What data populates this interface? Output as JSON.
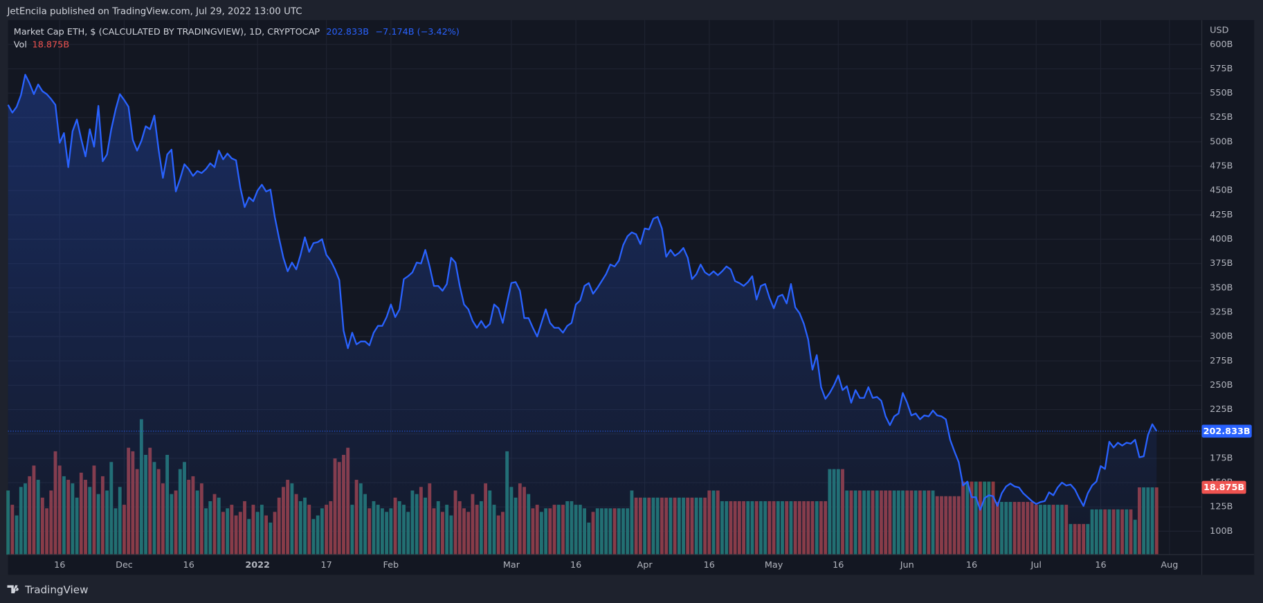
{
  "chart_data": {
    "type": "line",
    "publisher": "JetEncila published on TradingView.com, Jul 29, 2022 13:00 UTC",
    "title": "Market Cap ETH, $ (CALCULATED BY TRADINGVIEW), 1D, CRYPTOCAP",
    "axis_unit": "USD",
    "brand": "TradingView",
    "xlim": [
      0,
      277.5
    ],
    "xticks": [
      {
        "value": 12,
        "label": "16"
      },
      {
        "value": 27,
        "label": "Dec"
      },
      {
        "value": 42,
        "label": "16"
      },
      {
        "value": 58,
        "label": "2022"
      },
      {
        "value": 74,
        "label": "17"
      },
      {
        "value": 89,
        "label": "Feb"
      },
      {
        "value": 117,
        "label": "Mar"
      },
      {
        "value": 132,
        "label": "16"
      },
      {
        "value": 148,
        "label": "Apr"
      },
      {
        "value": 163,
        "label": "16"
      },
      {
        "value": 178,
        "label": "May"
      },
      {
        "value": 193,
        "label": "16"
      },
      {
        "value": 209,
        "label": "Jun"
      },
      {
        "value": 224,
        "label": "16"
      },
      {
        "value": 239,
        "label": "Jul"
      },
      {
        "value": 254,
        "label": "16"
      },
      {
        "value": 270,
        "label": "Aug"
      }
    ],
    "ylim": [
      76,
      625
    ],
    "yticks": [
      {
        "value": 100,
        "label": "100B"
      },
      {
        "value": 125,
        "label": "125B"
      },
      {
        "value": 150,
        "label": "150B"
      },
      {
        "value": 175,
        "label": "175B"
      },
      {
        "value": 200,
        "label": "200B"
      },
      {
        "value": 225,
        "label": "225B"
      },
      {
        "value": 250,
        "label": "250B"
      },
      {
        "value": 275,
        "label": "275B"
      },
      {
        "value": 300,
        "label": "300B"
      },
      {
        "value": 325,
        "label": "325B"
      },
      {
        "value": 350,
        "label": "350B"
      },
      {
        "value": 375,
        "label": "375B"
      },
      {
        "value": 400,
        "label": "400B"
      },
      {
        "value": 425,
        "label": "425B"
      },
      {
        "value": 450,
        "label": "450B"
      },
      {
        "value": 475,
        "label": "475B"
      },
      {
        "value": 500,
        "label": "500B"
      },
      {
        "value": 525,
        "label": "525B"
      },
      {
        "value": 550,
        "label": "550B"
      },
      {
        "value": 575,
        "label": "575B"
      },
      {
        "value": 600,
        "label": "600B"
      }
    ],
    "y2lim": [
      0,
      150
    ],
    "grid": true,
    "series": [
      {
        "color": "#2962ff",
        "last_label": "202.833B",
        "change_label": "−7.174B (−3.42%)",
        "values": [
          538,
          530,
          536,
          548,
          569,
          560,
          549,
          559,
          552,
          549,
          544,
          538,
          499,
          509,
          474,
          511,
          523,
          503,
          485,
          513,
          495,
          537,
          480,
          487,
          513,
          533,
          549,
          543,
          536,
          502,
          491,
          501,
          516,
          513,
          527,
          492,
          463,
          487,
          492,
          449,
          462,
          477,
          472,
          465,
          470,
          468,
          472,
          478,
          474,
          491,
          482,
          488,
          483,
          481,
          453,
          433,
          443,
          439,
          450,
          456,
          449,
          451,
          423,
          401,
          381,
          367,
          376,
          369,
          384,
          402,
          387,
          396,
          397,
          400,
          384,
          378,
          369,
          358,
          306,
          288,
          304,
          292,
          295,
          295,
          291,
          304,
          311,
          311,
          320,
          333,
          320,
          328,
          359,
          362,
          366,
          376,
          375,
          389,
          372,
          352,
          352,
          347,
          354,
          381,
          376,
          352,
          333,
          328,
          316,
          309,
          316,
          309,
          313,
          333,
          329,
          314,
          335,
          355,
          356,
          347,
          319,
          319,
          309,
          300,
          314,
          328,
          314,
          309,
          309,
          304,
          311,
          314,
          333,
          337,
          352,
          355,
          344,
          350,
          357,
          364,
          374,
          372,
          378,
          394,
          403,
          407,
          405,
          395,
          411,
          410,
          421,
          423,
          411,
          382,
          389,
          383,
          386,
          391,
          381,
          359,
          364,
          374,
          366,
          363,
          367,
          363,
          367,
          372,
          369,
          357,
          355,
          352,
          356,
          362,
          338,
          352,
          354,
          340,
          329,
          341,
          343,
          334,
          354,
          330,
          324,
          313,
          297,
          266,
          281,
          248,
          236,
          242,
          250,
          260,
          245,
          249,
          232,
          245,
          237,
          237,
          248,
          237,
          238,
          234,
          218,
          209,
          218,
          221,
          242,
          232,
          219,
          221,
          215,
          219,
          218,
          224,
          219,
          218,
          215,
          194,
          182,
          171,
          147,
          151,
          135,
          135,
          122,
          134,
          137,
          136,
          126,
          139,
          146,
          149,
          146,
          145,
          139,
          135,
          131,
          128,
          130,
          131,
          140,
          137,
          145,
          150,
          147,
          148,
          143,
          134,
          126,
          139,
          147,
          151,
          167,
          164,
          192,
          186,
          191,
          188,
          191,
          190,
          194,
          176,
          177,
          199,
          210,
          202.833
        ]
      },
      {
        "name": "Vol",
        "type": "bar",
        "axis": "y2",
        "up_color": "#22706b",
        "down_color": "#8c3a40",
        "last_label": "18.875B",
        "values": [
          18,
          14,
          11,
          19,
          20,
          22,
          25,
          21,
          16,
          13,
          18,
          29,
          25,
          22,
          21,
          20,
          16,
          23,
          21,
          19,
          25,
          17,
          22,
          18,
          26,
          13,
          19,
          14,
          30,
          29,
          24,
          38,
          28,
          30,
          26,
          24,
          20,
          28,
          17,
          18,
          24,
          26,
          21,
          22,
          18,
          20,
          13,
          15,
          17,
          16,
          12,
          13,
          14,
          11,
          12,
          15,
          10,
          14,
          12,
          14,
          11,
          9,
          12,
          16,
          19,
          21,
          20,
          17,
          15,
          16,
          14,
          10,
          11,
          13,
          14,
          15,
          27,
          26,
          28,
          30,
          14,
          21,
          20,
          17,
          13,
          15,
          14,
          13,
          12,
          13,
          16,
          15,
          14,
          12,
          18,
          17,
          19,
          16,
          20,
          13,
          15,
          12,
          14,
          11,
          18,
          15,
          13,
          12,
          17,
          14,
          15,
          20,
          18,
          14,
          11,
          12,
          29,
          19,
          16,
          20,
          19,
          17,
          13,
          14,
          12,
          13,
          13,
          14,
          14,
          14,
          15,
          15,
          14,
          14,
          13,
          9,
          12,
          13,
          13,
          13,
          13,
          13,
          13,
          13,
          13,
          18,
          16,
          16,
          16,
          16,
          16,
          16,
          16,
          16,
          16,
          16,
          16,
          16,
          16,
          16,
          16,
          16,
          16,
          18,
          18,
          18,
          15,
          15,
          15,
          15,
          15,
          15,
          15,
          15,
          15,
          15,
          15,
          15,
          15,
          15,
          15,
          15,
          15,
          15,
          15,
          15,
          15,
          15,
          15,
          15,
          15,
          24,
          24,
          24,
          24,
          18,
          18,
          18,
          18,
          18,
          18,
          18,
          18,
          18,
          18,
          18,
          18,
          18,
          18,
          18,
          18,
          18,
          18,
          18,
          18,
          18,
          16.4,
          16.4,
          16.4,
          16.4,
          16.4,
          16.4,
          20.5,
          20.5,
          20.5,
          20.5,
          20.5,
          20.5,
          20.5,
          20.5,
          14.8,
          14.8,
          14.8,
          14.8,
          14.8,
          14.8,
          14.8,
          14.8,
          14.8,
          14,
          14,
          14,
          14,
          14,
          14,
          14,
          14,
          8.6,
          8.6,
          8.6,
          8.6,
          8.6,
          12.7,
          12.7,
          12.7,
          12.7,
          12.7,
          12.7,
          12.7,
          12.7,
          12.7,
          12.7,
          9.8,
          18.875,
          18.875,
          18.875,
          18.875,
          18.875
        ]
      }
    ]
  }
}
